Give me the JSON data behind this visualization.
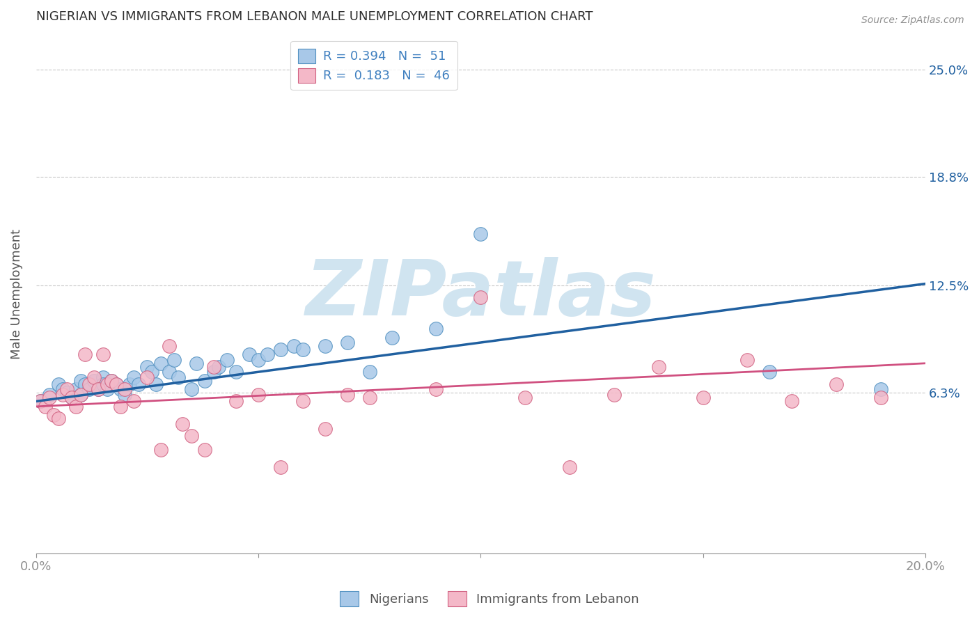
{
  "title": "NIGERIAN VS IMMIGRANTS FROM LEBANON MALE UNEMPLOYMENT CORRELATION CHART",
  "source": "Source: ZipAtlas.com",
  "ylabel": "Male Unemployment",
  "xlim": [
    0.0,
    0.2
  ],
  "ylim": [
    -0.03,
    0.27
  ],
  "yticks": [
    0.063,
    0.125,
    0.188,
    0.25
  ],
  "ytick_labels": [
    "6.3%",
    "12.5%",
    "18.8%",
    "25.0%"
  ],
  "xticks": [
    0.0,
    0.05,
    0.1,
    0.15,
    0.2
  ],
  "xtick_labels": [
    "0.0%",
    "",
    "",
    "",
    "20.0%"
  ],
  "legend_label1": "Nigerians",
  "legend_label2": "Immigrants from Lebanon",
  "blue_color": "#a8c8e8",
  "pink_color": "#f4b8c8",
  "blue_edge_color": "#5090c0",
  "pink_edge_color": "#d06080",
  "blue_line_color": "#2060a0",
  "pink_line_color": "#d05080",
  "watermark": "ZIPatlas",
  "watermark_color": "#d0e4f0",
  "legend_text_color": "#4080c0",
  "title_color": "#303030",
  "source_color": "#909090",
  "axis_color": "#909090",
  "grid_color": "#c8c8c8",
  "blue_scatter_x": [
    0.001,
    0.003,
    0.005,
    0.006,
    0.007,
    0.008,
    0.009,
    0.01,
    0.01,
    0.011,
    0.012,
    0.013,
    0.014,
    0.015,
    0.015,
    0.016,
    0.017,
    0.018,
    0.019,
    0.02,
    0.021,
    0.022,
    0.023,
    0.025,
    0.026,
    0.027,
    0.028,
    0.03,
    0.031,
    0.032,
    0.035,
    0.036,
    0.038,
    0.04,
    0.041,
    0.043,
    0.045,
    0.048,
    0.05,
    0.052,
    0.055,
    0.058,
    0.06,
    0.065,
    0.07,
    0.075,
    0.08,
    0.09,
    0.1,
    0.165,
    0.19
  ],
  "blue_scatter_y": [
    0.058,
    0.062,
    0.068,
    0.065,
    0.063,
    0.06,
    0.065,
    0.07,
    0.062,
    0.068,
    0.065,
    0.07,
    0.065,
    0.072,
    0.068,
    0.065,
    0.07,
    0.068,
    0.065,
    0.062,
    0.068,
    0.072,
    0.068,
    0.078,
    0.075,
    0.068,
    0.08,
    0.075,
    0.082,
    0.072,
    0.065,
    0.08,
    0.07,
    0.075,
    0.078,
    0.082,
    0.075,
    0.085,
    0.082,
    0.085,
    0.088,
    0.09,
    0.088,
    0.09,
    0.092,
    0.075,
    0.095,
    0.1,
    0.155,
    0.075,
    0.065
  ],
  "pink_scatter_x": [
    0.001,
    0.002,
    0.003,
    0.004,
    0.005,
    0.006,
    0.007,
    0.008,
    0.009,
    0.01,
    0.011,
    0.012,
    0.013,
    0.014,
    0.015,
    0.016,
    0.017,
    0.018,
    0.019,
    0.02,
    0.022,
    0.025,
    0.028,
    0.03,
    0.033,
    0.035,
    0.038,
    0.04,
    0.045,
    0.05,
    0.055,
    0.06,
    0.065,
    0.07,
    0.075,
    0.09,
    0.1,
    0.11,
    0.12,
    0.13,
    0.14,
    0.15,
    0.16,
    0.17,
    0.18,
    0.19
  ],
  "pink_scatter_y": [
    0.058,
    0.055,
    0.06,
    0.05,
    0.048,
    0.062,
    0.065,
    0.06,
    0.055,
    0.062,
    0.085,
    0.068,
    0.072,
    0.065,
    0.085,
    0.068,
    0.07,
    0.068,
    0.055,
    0.065,
    0.058,
    0.072,
    0.03,
    0.09,
    0.045,
    0.038,
    0.03,
    0.078,
    0.058,
    0.062,
    0.02,
    0.058,
    0.042,
    0.062,
    0.06,
    0.065,
    0.118,
    0.06,
    0.02,
    0.062,
    0.078,
    0.06,
    0.082,
    0.058,
    0.068,
    0.06
  ],
  "blue_trendline_x0": 0.0,
  "blue_trendline_y0": 0.058,
  "blue_trendline_x1": 0.2,
  "blue_trendline_y1": 0.126,
  "pink_trendline_x0": 0.0,
  "pink_trendline_y0": 0.055,
  "pink_trendline_x1": 0.2,
  "pink_trendline_y1": 0.08
}
